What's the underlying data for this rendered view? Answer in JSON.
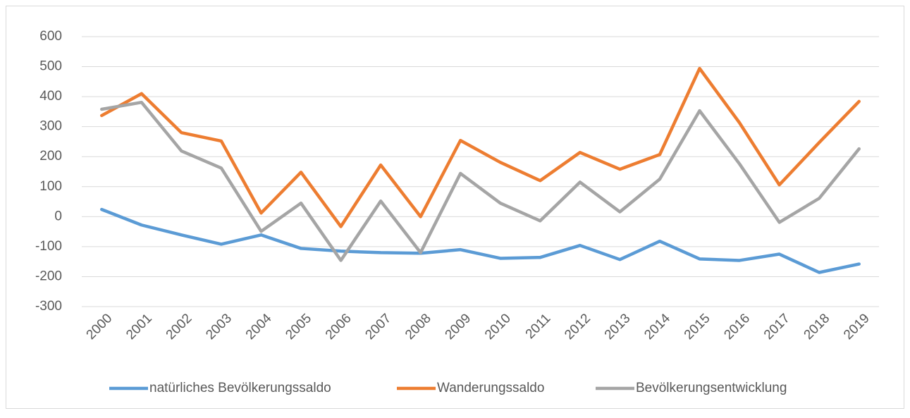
{
  "chart_data": {
    "type": "line",
    "categories": [
      "2000",
      "2001",
      "2002",
      "2003",
      "2004",
      "2005",
      "2006",
      "2007",
      "2008",
      "2009",
      "2010",
      "2011",
      "2012",
      "2013",
      "2014",
      "2015",
      "2016",
      "2017",
      "2018",
      "2019"
    ],
    "series": [
      {
        "name": "natürliches Bevölkerungssaldo",
        "color": "#5b9bd5",
        "values": [
          24,
          -28,
          -61,
          -92,
          -61,
          -106,
          -115,
          -120,
          -122,
          -110,
          -139,
          -136,
          -96,
          -143,
          -82,
          -141,
          -146,
          -125,
          -186,
          -158
        ]
      },
      {
        "name": "Wanderungssaldo",
        "color": "#ed7d31",
        "values": [
          337,
          410,
          280,
          252,
          12,
          148,
          -33,
          172,
          0,
          254,
          181,
          120,
          214,
          158,
          207,
          494,
          313,
          106,
          247,
          384
        ]
      },
      {
        "name": "Bevölkerungsentwicklung",
        "color": "#a5a5a5",
        "values": [
          358,
          381,
          219,
          162,
          -49,
          45,
          -146,
          52,
          -120,
          144,
          45,
          -14,
          115,
          16,
          125,
          353,
          176,
          -19,
          61,
          226
        ]
      }
    ],
    "ylim": [
      -300,
      600
    ],
    "yticks": [
      -300,
      -200,
      -100,
      0,
      100,
      200,
      300,
      400,
      500,
      600
    ],
    "grid": true,
    "legend": "bottom"
  }
}
